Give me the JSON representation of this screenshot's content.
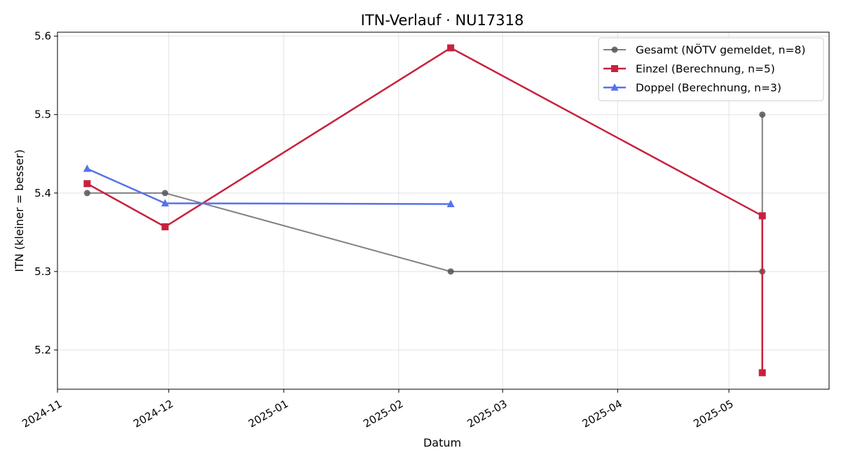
{
  "chart_data": {
    "type": "line",
    "title": "ITN-Verlauf · NU17318",
    "xlabel": "Datum",
    "ylabel": "ITN  (kleiner = besser)",
    "xlim": [
      "2024-11-01",
      "2025-05-28"
    ],
    "ylim": [
      5.15,
      5.605
    ],
    "x_ticks": [
      "2024-11",
      "2024-12",
      "2025-01",
      "2025-02",
      "2025-03",
      "2025-04",
      "2025-05"
    ],
    "y_ticks": [
      "5.2",
      "5.3",
      "5.4",
      "5.5",
      "5.6"
    ],
    "grid": true,
    "legend_position": "top-right",
    "series": [
      {
        "name": "Gesamt (NÖTV gemeldet, n=8)",
        "color": "#555555",
        "marker": "circle",
        "points": [
          {
            "x": "2024-11-09",
            "y": 5.4
          },
          {
            "x": "2024-11-30",
            "y": 5.4
          },
          {
            "x": "2025-02-15",
            "y": 5.3
          },
          {
            "x": "2025-05-10",
            "y": 5.3
          },
          {
            "x": "2025-05-10",
            "y": 5.5
          },
          {
            "x": "2025-05-10",
            "y": 5.37
          }
        ]
      },
      {
        "name": "Einzel (Berechnung, n=5)",
        "color": "#c8213f",
        "marker": "square",
        "points": [
          {
            "x": "2024-11-09",
            "y": 5.412
          },
          {
            "x": "2024-11-30",
            "y": 5.357
          },
          {
            "x": "2025-02-15",
            "y": 5.585
          },
          {
            "x": "2025-05-10",
            "y": 5.371
          },
          {
            "x": "2025-05-10",
            "y": 5.171
          }
        ]
      },
      {
        "name": "Doppel (Berechnung, n=3)",
        "color": "#5672ec",
        "marker": "triangle",
        "points": [
          {
            "x": "2024-11-09",
            "y": 5.431
          },
          {
            "x": "2024-11-30",
            "y": 5.387
          },
          {
            "x": "2025-02-15",
            "y": 5.386
          }
        ]
      }
    ]
  }
}
